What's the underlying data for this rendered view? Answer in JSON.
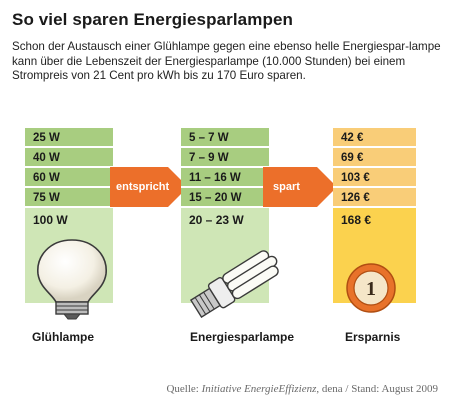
{
  "title": "So viel sparen Energiesparlampen",
  "intro": "Schon der Austausch einer Glühlampe gegen eine ebenso helle Energiespar-lampe kann über die Lebenszeit der Energiesparlampe (10.000 Stunden) bei einem Strompreis von 21 Cent pro kWh bis zu 170 Euro sparen.",
  "columns": {
    "gluehlampe": {
      "caption": "Glühlampe",
      "values": [
        "25 W",
        "40 W",
        "60 W",
        "75 W",
        "100 W"
      ]
    },
    "energiesparlampe": {
      "caption": "Energiesparlampe",
      "values": [
        "5 – 7 W",
        "7 – 9 W",
        "11 – 16 W",
        "15 – 20 W",
        "20 – 23 W"
      ]
    },
    "ersparnis": {
      "caption": "Ersparnis",
      "values": [
        "42 €",
        "69 €",
        "103 €",
        "126 €",
        "168 €"
      ]
    }
  },
  "arrows": {
    "first": "entspricht",
    "second": "spart"
  },
  "coin_label": "1",
  "source": {
    "prefix": "Quelle: ",
    "org": "Initiative EnergieEffizienz",
    "suffix": ", dena / Stand: August 2009"
  },
  "colors": {
    "green_dark": "#a8cd80",
    "green_light": "#cfe6b6",
    "orange_light": "#f9cd78",
    "yellow": "#fbd24e",
    "arrow": "#ec6f2a"
  }
}
